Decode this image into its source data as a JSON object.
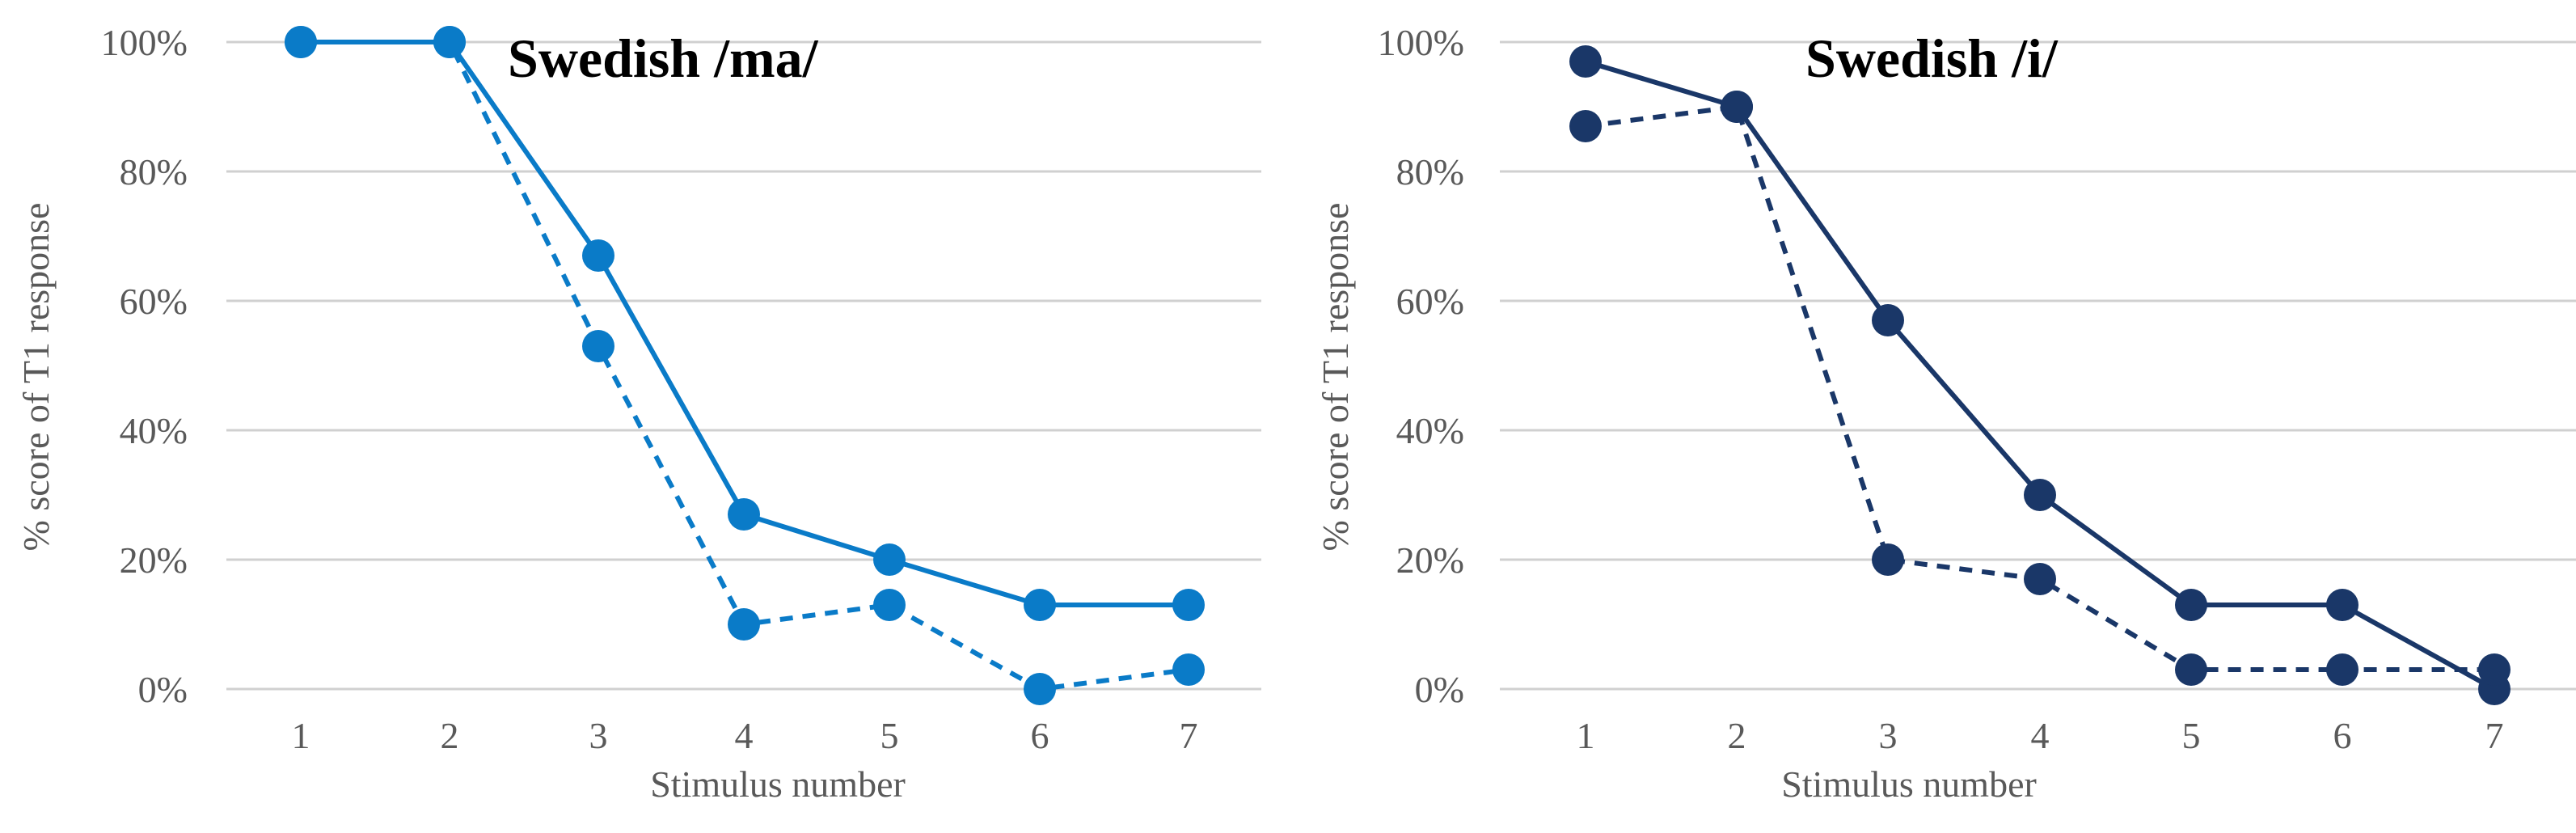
{
  "chart_data": [
    {
      "type": "line",
      "title": "Swedish /ma/",
      "xlabel": "Stimulus number",
      "ylabel": "% score of T1 response",
      "categories": [
        "1",
        "2",
        "3",
        "4",
        "5",
        "6",
        "7"
      ],
      "yticks": [
        "0%",
        "20%",
        "40%",
        "60%",
        "80%",
        "100%"
      ],
      "ylim": [
        0,
        100
      ],
      "grid": true,
      "color": "#0a7bc8",
      "series": [
        {
          "style": "solid",
          "values": [
            100,
            100,
            67,
            27,
            20,
            13,
            13
          ]
        },
        {
          "style": "dashed",
          "values": [
            100,
            100,
            53,
            10,
            13,
            0,
            3
          ]
        }
      ]
    },
    {
      "type": "line",
      "title": "Swedish /i/",
      "xlabel": "Stimulus number",
      "ylabel": "% score of T1 response",
      "categories": [
        "1",
        "2",
        "3",
        "4",
        "5",
        "6",
        "7"
      ],
      "yticks": [
        "0%",
        "20%",
        "40%",
        "60%",
        "80%",
        "100%"
      ],
      "ylim": [
        0,
        100
      ],
      "grid": true,
      "color": "#1a3768",
      "series": [
        {
          "style": "solid",
          "values": [
            97,
            90,
            57,
            30,
            13,
            13,
            0
          ]
        },
        {
          "style": "dashed",
          "values": [
            87,
            90,
            20,
            17,
            3,
            3,
            3
          ]
        }
      ]
    }
  ]
}
